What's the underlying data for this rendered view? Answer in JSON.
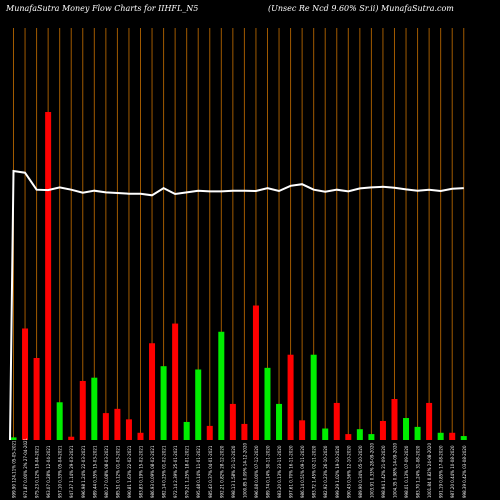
{
  "header": {
    "title_left": "MunafaSutra  Money Flow  Charts for IIHFL_N5",
    "title_right": "(Unsec Re    Ncd 9.60% Sr.ii) MunafaSutra.com"
  },
  "colors": {
    "up": "#00ee00",
    "down": "#ff0000",
    "grid": "#a05a00",
    "line": "#ffffff",
    "background": "#000000"
  },
  "chart_data": {
    "type": "bar",
    "overlay_line": true,
    "ylim": [
      0,
      100
    ],
    "categories": [
      "05-05-2021",
      "27-04-2021",
      "19-04-2021",
      "12-04-2021",
      "05-04-2021",
      "29-03-2021",
      "22-03-2021",
      "15-03-2021",
      "08-03-2021",
      "01-03-2021",
      "22-02-2021",
      "15-02-2021",
      "08-02-2021",
      "01-02-2021",
      "25-01-2021",
      "18-01-2021",
      "11-01-2021",
      "04-01-2021",
      "28-12-2020",
      "21-12-2020",
      "14-12-2020",
      "07-12-2020",
      "30-11-2020",
      "23-11-2020",
      "16-11-2020",
      "09-11-2020",
      "02-11-2020",
      "26-10-2020",
      "19-10-2020",
      "12-10-2020",
      "05-10-2020",
      "28-09-2020",
      "21-09-2020",
      "14-09-2020",
      "07-09-2020",
      "31-08-2020",
      "24-08-2020",
      "17-08-2020",
      "10-08-2020",
      "03-08-2020"
    ],
    "x_labels": [
      "999.90 124.11%",
      "971.87 0.00% 2%",
      "975.23 0.12%",
      "963.07 0.28%",
      "957.10 0.33%",
      "947.37 1.14%",
      "996.98 1.24%",
      "989.44 0.35%",
      "980.27 0.08%",
      "985.51 0.12%",
      "990.81 1.63%",
      "983.83 0.19%",
      "986.93 0.09%",
      "982.14 0.25%",
      "972.14 2.39%",
      "979.21 1.25%",
      "995.48 0.14%",
      "985.43 0.37%",
      "992.21 0.82%",
      "998.13 1.58%",
      "1000.85 0.09%",
      "996.08 0.00%",
      "989.74 0.14%",
      "983.20 0.13%",
      "997.61 0.70%",
      "986.14 0.51%",
      "983.72 1.45%",
      "982.92 0.23%",
      "999.29 1.02%",
      "990.43 0.56%",
      "989.90 0.34%",
      "1003.91 0.33%",
      "998.94 1.42%",
      "1004.35 0.98%",
      "998.01 0.13%",
      "983.70 1.24%",
      "1001.84 0.82%",
      "991.19 0.85%",
      "987.20 0.44%",
      "998.39 0.42%"
    ],
    "bar_colors": [
      "green",
      "red",
      "red",
      "red",
      "green",
      "red",
      "red",
      "green",
      "red",
      "red",
      "red",
      "red",
      "red",
      "green",
      "red",
      "green",
      "green",
      "red",
      "green",
      "red",
      "red",
      "red",
      "green",
      "green",
      "red",
      "red",
      "green",
      "green",
      "red",
      "red",
      "green",
      "green",
      "red",
      "red",
      "green",
      "green",
      "red",
      "green",
      "red",
      "green"
    ],
    "values": [
      0.8,
      34,
      25,
      100,
      11.5,
      1,
      18,
      19,
      8.2,
      9.5,
      6.3,
      2.2,
      29.5,
      22.5,
      35.5,
      5.5,
      21.5,
      4.3,
      33,
      11,
      4.9,
      41,
      22,
      11,
      26,
      6,
      26,
      3.5,
      11.3,
      1.8,
      3.3,
      1.8,
      5.8,
      12.5,
      6.7,
      4,
      11.3,
      2.2,
      2.2,
      1.2
    ],
    "line": [
      82,
      81.5,
      76.3,
      76.2,
      77,
      76.3,
      75.4,
      76,
      75.5,
      75.3,
      75.1,
      75.1,
      74.6,
      76.8,
      75,
      75.5,
      76,
      75.8,
      75.8,
      76,
      76,
      75.9,
      76.8,
      75.9,
      77.5,
      78,
      76.3,
      75.7,
      76.3,
      75.8,
      76.7,
      77,
      77.2,
      76.9,
      76.4,
      76,
      76.3,
      75.9,
      76.6,
      76.8
    ]
  }
}
